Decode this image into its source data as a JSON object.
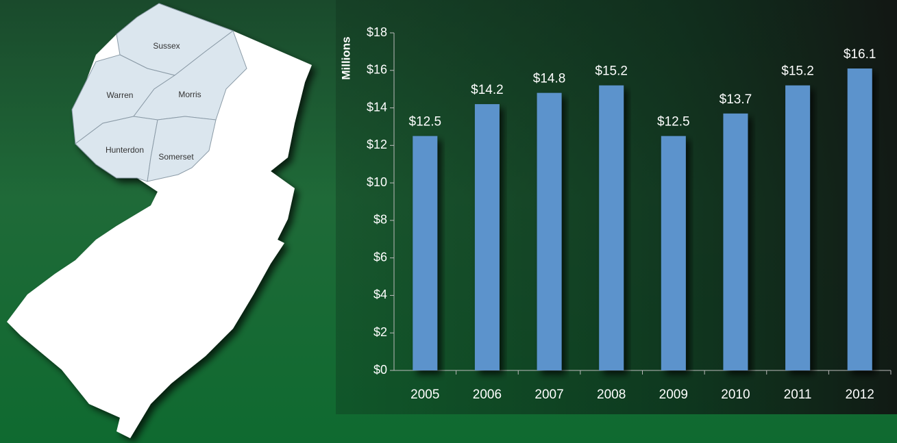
{
  "chart_data": {
    "type": "bar",
    "y_label": "Millions",
    "categories": [
      "2005",
      "2006",
      "2007",
      "2008",
      "2009",
      "2010",
      "2011",
      "2012"
    ],
    "values": [
      12.5,
      14.2,
      14.8,
      15.2,
      12.5,
      13.7,
      15.2,
      16.1
    ],
    "value_labels": [
      "$12.5",
      "$14.2",
      "$14.8",
      "$15.2",
      "$12.5",
      "$13.7",
      "$15.2",
      "$16.1"
    ],
    "color": "#5b93cc",
    "ylim": [
      0,
      18
    ],
    "yticks": [
      {
        "value": 0,
        "label": "$0"
      },
      {
        "value": 2,
        "label": "$2"
      },
      {
        "value": 4,
        "label": "$4"
      },
      {
        "value": 6,
        "label": "$6"
      },
      {
        "value": 8,
        "label": "$8"
      },
      {
        "value": 10,
        "label": "$10"
      },
      {
        "value": 12,
        "label": "$12"
      },
      {
        "value": 14,
        "label": "$14"
      },
      {
        "value": 16,
        "label": "$16"
      },
      {
        "value": 18,
        "label": "$18"
      }
    ],
    "grid": false
  },
  "map": {
    "counties": [
      "Sussex",
      "Warren",
      "Morris",
      "Hunterdon",
      "Somerset"
    ]
  }
}
